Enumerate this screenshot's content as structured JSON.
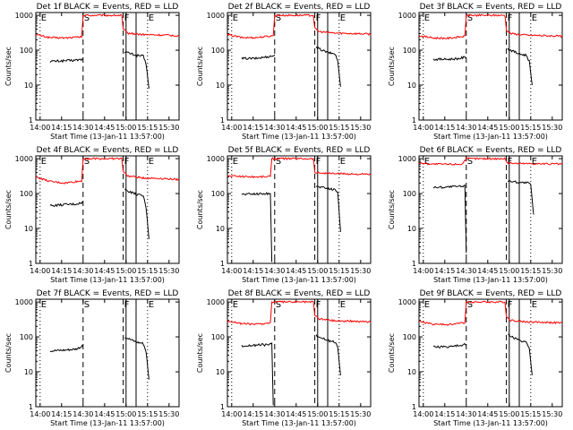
{
  "chart_data": {
    "type": "line",
    "ylabel": "Counts/sec",
    "xlabel": "Start Time (13-Jan-11 13:57:00)",
    "x_unit": "minutes after 13:57:00",
    "xlim": [
      0,
      100
    ],
    "ylim": [
      1,
      1200
    ],
    "y_scale": "log",
    "x_ticks": [
      {
        "x": 3,
        "label": "14:00"
      },
      {
        "x": 18,
        "label": "14:15"
      },
      {
        "x": 33,
        "label": "14:30"
      },
      {
        "x": 48,
        "label": "14:45"
      },
      {
        "x": 63,
        "label": "15:00"
      },
      {
        "x": 78,
        "label": "15:15"
      },
      {
        "x": 93,
        "label": "15:30"
      }
    ],
    "y_ticks": [
      {
        "y": 1,
        "label": "1"
      },
      {
        "y": 10,
        "label": "10"
      },
      {
        "y": 100,
        "label": "100"
      },
      {
        "y": 1000,
        "label": "1000"
      }
    ],
    "markers": [
      {
        "x": 3,
        "label": "E",
        "style": "dotted"
      },
      {
        "x": 33,
        "label": "S",
        "style": "dashed"
      },
      {
        "x": 61,
        "label": "F",
        "style": "dashed"
      },
      {
        "x": 63,
        "label": "",
        "style": "solid"
      },
      {
        "x": 70,
        "label": "",
        "style": "solid"
      },
      {
        "x": 78,
        "label": "E",
        "style": "dotted"
      }
    ],
    "legend": {
      "black": "Events",
      "red": "LLD"
    },
    "colors": {
      "events": "#000000",
      "lld": "#ff0000"
    },
    "panels": [
      {
        "title": "Det 1f BLACK = Events, RED = LLD",
        "events": [
          [
            10,
            48
          ],
          [
            20,
            50
          ],
          [
            28,
            52
          ],
          [
            33,
            55
          ],
          [
            62,
            90
          ],
          [
            70,
            72
          ],
          [
            75,
            68
          ],
          [
            77,
            40
          ],
          [
            79,
            8
          ]
        ],
        "lld": [
          [
            0,
            280
          ],
          [
            10,
            230
          ],
          [
            20,
            225
          ],
          [
            32,
            240
          ],
          [
            33,
            1000
          ],
          [
            60,
            1000
          ],
          [
            61,
            400
          ],
          [
            64,
            310
          ],
          [
            75,
            280
          ],
          [
            90,
            270
          ],
          [
            100,
            260
          ]
        ]
      },
      {
        "title": "Det 2f BLACK = Events, RED = LLD",
        "events": [
          [
            10,
            58
          ],
          [
            20,
            58
          ],
          [
            28,
            65
          ],
          [
            33,
            70
          ],
          [
            62,
            120
          ],
          [
            70,
            85
          ],
          [
            75,
            80
          ],
          [
            77,
            50
          ],
          [
            79,
            9
          ]
        ],
        "lld": [
          [
            0,
            280
          ],
          [
            10,
            230
          ],
          [
            20,
            230
          ],
          [
            32,
            260
          ],
          [
            33,
            1000
          ],
          [
            60,
            1000
          ],
          [
            61,
            420
          ],
          [
            64,
            340
          ],
          [
            75,
            310
          ],
          [
            90,
            300
          ],
          [
            100,
            290
          ]
        ]
      },
      {
        "title": "Det 3f BLACK = Events, RED = LLD",
        "events": [
          [
            10,
            55
          ],
          [
            20,
            55
          ],
          [
            28,
            58
          ],
          [
            33,
            65
          ],
          [
            62,
            110
          ],
          [
            70,
            78
          ],
          [
            75,
            72
          ],
          [
            77,
            48
          ],
          [
            79,
            10
          ]
        ],
        "lld": [
          [
            0,
            260
          ],
          [
            10,
            225
          ],
          [
            20,
            220
          ],
          [
            32,
            250
          ],
          [
            33,
            1000
          ],
          [
            60,
            1000
          ],
          [
            61,
            380
          ],
          [
            64,
            300
          ],
          [
            75,
            270
          ],
          [
            90,
            260
          ],
          [
            100,
            250
          ]
        ]
      },
      {
        "title": "Det 4f BLACK = Events, RED = LLD",
        "events": [
          [
            10,
            45
          ],
          [
            20,
            48
          ],
          [
            28,
            50
          ],
          [
            33,
            55
          ],
          [
            62,
            130
          ],
          [
            70,
            95
          ],
          [
            75,
            85
          ],
          [
            77,
            40
          ],
          [
            79,
            5
          ]
        ],
        "lld": [
          [
            0,
            300
          ],
          [
            10,
            220
          ],
          [
            20,
            200
          ],
          [
            32,
            230
          ],
          [
            33,
            1000
          ],
          [
            60,
            1000
          ],
          [
            61,
            450
          ],
          [
            64,
            320
          ],
          [
            75,
            280
          ],
          [
            90,
            270
          ],
          [
            100,
            250
          ]
        ]
      },
      {
        "title": "Det 5f BLACK = Events, RED = LLD",
        "events": [
          [
            10,
            95
          ],
          [
            20,
            98
          ],
          [
            28,
            100
          ],
          [
            30,
            102
          ],
          [
            31,
            1.1
          ],
          [
            62,
            160
          ],
          [
            70,
            140
          ],
          [
            75,
            130
          ],
          [
            77,
            110
          ],
          [
            79,
            8
          ]
        ],
        "lld": [
          [
            0,
            320
          ],
          [
            10,
            310
          ],
          [
            20,
            300
          ],
          [
            30,
            310
          ],
          [
            31,
            1000
          ],
          [
            60,
            1000
          ],
          [
            61,
            400
          ],
          [
            70,
            380
          ],
          [
            80,
            370
          ],
          [
            90,
            360
          ],
          [
            100,
            350
          ]
        ]
      },
      {
        "title": "Det 6f BLACK = Events, RED = LLD",
        "events": [
          [
            10,
            150
          ],
          [
            20,
            155
          ],
          [
            30,
            160
          ],
          [
            32,
            165
          ],
          [
            33,
            2
          ],
          [
            62,
            230
          ],
          [
            70,
            210
          ],
          [
            76,
            200
          ],
          [
            78,
            180
          ],
          [
            80,
            25
          ]
        ],
        "lld": [
          [
            0,
            750
          ],
          [
            10,
            700
          ],
          [
            20,
            690
          ],
          [
            30,
            700
          ],
          [
            33,
            1000
          ],
          [
            60,
            1000
          ],
          [
            62,
            750
          ],
          [
            70,
            730
          ],
          [
            80,
            720
          ],
          [
            90,
            710
          ],
          [
            100,
            700
          ]
        ]
      },
      {
        "title": "Det 7f BLACK = Events, RED = LLD",
        "events": [
          [
            10,
            40
          ],
          [
            20,
            42
          ],
          [
            28,
            45
          ],
          [
            33,
            55
          ],
          [
            62,
            100
          ],
          [
            70,
            72
          ],
          [
            75,
            65
          ],
          [
            77,
            38
          ],
          [
            79,
            6
          ]
        ],
        "lld": []
      },
      {
        "title": "Det 8f BLACK = Events, RED = LLD",
        "events": [
          [
            10,
            55
          ],
          [
            20,
            58
          ],
          [
            28,
            60
          ],
          [
            31,
            62
          ],
          [
            32,
            1.1
          ],
          [
            62,
            110
          ],
          [
            70,
            80
          ],
          [
            75,
            70
          ],
          [
            77,
            50
          ],
          [
            79,
            8
          ]
        ],
        "lld": [
          [
            0,
            290
          ],
          [
            10,
            240
          ],
          [
            20,
            230
          ],
          [
            30,
            250
          ],
          [
            31,
            1000
          ],
          [
            60,
            1000
          ],
          [
            61,
            420
          ],
          [
            64,
            330
          ],
          [
            75,
            290
          ],
          [
            90,
            280
          ],
          [
            100,
            270
          ]
        ]
      },
      {
        "title": "Det 9f BLACK = Events, RED = LLD",
        "events": [
          [
            10,
            52
          ],
          [
            20,
            52
          ],
          [
            28,
            56
          ],
          [
            33,
            62
          ],
          [
            62,
            115
          ],
          [
            70,
            80
          ],
          [
            75,
            70
          ],
          [
            77,
            45
          ],
          [
            79,
            8
          ]
        ],
        "lld": [
          [
            0,
            280
          ],
          [
            10,
            230
          ],
          [
            20,
            225
          ],
          [
            32,
            255
          ],
          [
            33,
            1000
          ],
          [
            60,
            1000
          ],
          [
            61,
            380
          ],
          [
            64,
            300
          ],
          [
            75,
            270
          ],
          [
            90,
            260
          ],
          [
            100,
            250
          ]
        ]
      }
    ]
  }
}
